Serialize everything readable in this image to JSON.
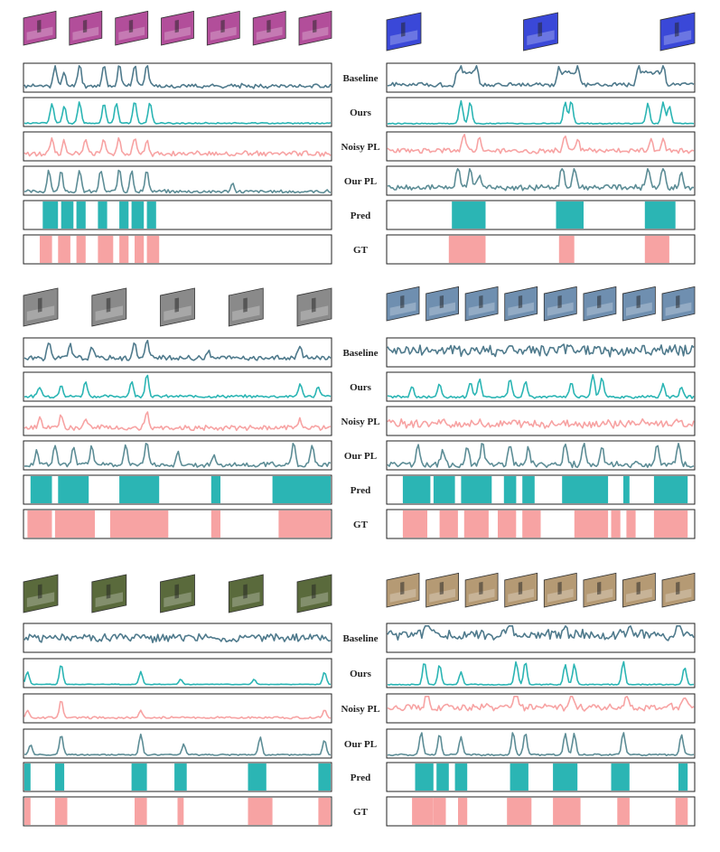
{
  "figure": {
    "row_labels": [
      "Baseline",
      "Ours",
      "Noisy PL",
      "Our PL",
      "Pred",
      "GT"
    ]
  },
  "colors": {
    "baseline": "#4f7a8c",
    "ours": "#2bb5b4",
    "noisy_pl": "#f7a3a3",
    "our_pl": "#5d8d96",
    "pred_fill": "#2bb5b4",
    "gt_fill": "#f7a3a3",
    "frame_pink": "#b24e9a",
    "frame_blue": "#3a48d8",
    "frame_gray": "#8a8a8a",
    "frame_sky": "#6f8fb0",
    "frame_field": "#5a6a3c",
    "frame_tan": "#b59a74"
  },
  "chart_data": [
    {
      "type": "line",
      "panel": "top-left",
      "thumbnail_style": "frame_pink",
      "thumbnail_count": 7,
      "pred_segments": [
        [
          0.06,
          0.11
        ],
        [
          0.12,
          0.16
        ],
        [
          0.17,
          0.2
        ],
        [
          0.24,
          0.27
        ],
        [
          0.31,
          0.34
        ],
        [
          0.35,
          0.39
        ],
        [
          0.4,
          0.43
        ]
      ],
      "gt_segments": [
        [
          0.05,
          0.09
        ],
        [
          0.11,
          0.15
        ],
        [
          0.17,
          0.2
        ],
        [
          0.24,
          0.29
        ],
        [
          0.31,
          0.34
        ],
        [
          0.36,
          0.39
        ],
        [
          0.4,
          0.44
        ]
      ],
      "series": {
        "baseline": {
          "seed": 11,
          "peaks": [
            [
              0.1,
              0.8
            ],
            [
              0.13,
              0.5
            ],
            [
              0.18,
              0.9
            ],
            [
              0.26,
              0.8
            ],
            [
              0.31,
              0.8
            ],
            [
              0.36,
              0.85
            ],
            [
              0.4,
              0.9
            ]
          ],
          "noise": 0.12,
          "base": 0.15
        },
        "ours": {
          "seed": 12,
          "peaks": [
            [
              0.09,
              0.8
            ],
            [
              0.13,
              0.7
            ],
            [
              0.18,
              0.85
            ],
            [
              0.26,
              0.8
            ],
            [
              0.3,
              0.8
            ],
            [
              0.36,
              0.9
            ],
            [
              0.41,
              0.85
            ]
          ],
          "noise": 0.04,
          "base": 0.05
        },
        "noisy_pl": {
          "seed": 13,
          "peaks": [
            [
              0.09,
              0.6
            ],
            [
              0.13,
              0.55
            ],
            [
              0.2,
              0.55
            ],
            [
              0.26,
              0.6
            ],
            [
              0.31,
              0.6
            ],
            [
              0.36,
              0.7
            ],
            [
              0.4,
              0.6
            ]
          ],
          "noise": 0.15,
          "base": 0.18
        },
        "our_pl": {
          "seed": 14,
          "peaks": [
            [
              0.08,
              0.8
            ],
            [
              0.12,
              0.8
            ],
            [
              0.18,
              0.8
            ],
            [
              0.25,
              0.85
            ],
            [
              0.31,
              0.9
            ],
            [
              0.35,
              0.85
            ],
            [
              0.4,
              0.85
            ],
            [
              0.68,
              0.3
            ]
          ],
          "noise": 0.1,
          "base": 0.05
        }
      }
    },
    {
      "type": "line",
      "panel": "top-right",
      "thumbnail_style": "frame_blue",
      "thumbnail_count": 3,
      "pred_segments": [
        [
          0.21,
          0.32
        ],
        [
          0.55,
          0.64
        ],
        [
          0.84,
          0.94
        ]
      ],
      "gt_segments": [
        [
          0.2,
          0.32
        ],
        [
          0.56,
          0.61
        ],
        [
          0.84,
          0.92
        ]
      ],
      "series": {
        "baseline": {
          "seed": 21,
          "peaks": [
            [
              0.24,
              0.85
            ],
            [
              0.29,
              0.8
            ],
            [
              0.56,
              0.75
            ],
            [
              0.62,
              0.85
            ],
            [
              0.82,
              0.75
            ],
            [
              0.9,
              0.8
            ]
          ],
          "noise": 0.12,
          "base": 0.2,
          "plateaus": [
            [
              0.22,
              0.3,
              0.7
            ],
            [
              0.56,
              0.63,
              0.7
            ],
            [
              0.82,
              0.9,
              0.7
            ]
          ]
        },
        "ours": {
          "seed": 22,
          "peaks": [
            [
              0.24,
              0.9
            ],
            [
              0.27,
              0.85
            ],
            [
              0.58,
              0.85
            ],
            [
              0.6,
              0.9
            ],
            [
              0.85,
              0.8
            ],
            [
              0.9,
              0.85
            ],
            [
              0.92,
              0.7
            ]
          ],
          "noise": 0.03,
          "base": 0.04
        },
        "noisy_pl": {
          "seed": 23,
          "peaks": [
            [
              0.25,
              0.7
            ],
            [
              0.3,
              0.5
            ],
            [
              0.58,
              0.6
            ],
            [
              0.62,
              0.5
            ],
            [
              0.86,
              0.55
            ],
            [
              0.9,
              0.45
            ]
          ],
          "noise": 0.15,
          "base": 0.3
        },
        "our_pl": {
          "seed": 24,
          "peaks": [
            [
              0.23,
              0.9
            ],
            [
              0.27,
              0.8
            ],
            [
              0.3,
              0.6
            ],
            [
              0.57,
              0.9
            ],
            [
              0.61,
              0.85
            ],
            [
              0.85,
              0.8
            ],
            [
              0.9,
              0.9
            ],
            [
              0.96,
              0.6
            ]
          ],
          "noise": 0.15,
          "base": 0.2
        }
      }
    },
    {
      "type": "line",
      "panel": "middle-left",
      "thumbnail_style": "frame_gray",
      "thumbnail_count": 5,
      "pred_segments": [
        [
          0.02,
          0.09
        ],
        [
          0.11,
          0.21
        ],
        [
          0.31,
          0.44
        ],
        [
          0.61,
          0.64
        ],
        [
          0.81,
          1.0
        ]
      ],
      "gt_segments": [
        [
          0.01,
          0.09
        ],
        [
          0.1,
          0.23
        ],
        [
          0.28,
          0.47
        ],
        [
          0.61,
          0.64
        ],
        [
          0.83,
          1.0
        ]
      ],
      "series": {
        "baseline": {
          "seed": 31,
          "peaks": [
            [
              0.08,
              0.6
            ],
            [
              0.15,
              0.5
            ],
            [
              0.22,
              0.4
            ],
            [
              0.36,
              0.6
            ],
            [
              0.4,
              0.7
            ],
            [
              0.6,
              0.3
            ],
            [
              0.9,
              0.5
            ]
          ],
          "noise": 0.15,
          "base": 0.25
        },
        "ours": {
          "seed": 32,
          "peaks": [
            [
              0.05,
              0.4
            ],
            [
              0.12,
              0.5
            ],
            [
              0.2,
              0.6
            ],
            [
              0.35,
              0.6
            ],
            [
              0.4,
              0.9
            ],
            [
              0.9,
              0.5
            ],
            [
              0.96,
              0.4
            ]
          ],
          "noise": 0.08,
          "base": 0.1
        },
        "noisy_pl": {
          "seed": 33,
          "peaks": [
            [
              0.05,
              0.4
            ],
            [
              0.12,
              0.5
            ],
            [
              0.2,
              0.45
            ],
            [
              0.4,
              0.7
            ],
            [
              0.9,
              0.3
            ]
          ],
          "noise": 0.15,
          "base": 0.2
        },
        "our_pl": {
          "seed": 34,
          "peaks": [
            [
              0.04,
              0.6
            ],
            [
              0.1,
              0.8
            ],
            [
              0.16,
              0.7
            ],
            [
              0.22,
              0.8
            ],
            [
              0.33,
              0.8
            ],
            [
              0.4,
              0.9
            ],
            [
              0.5,
              0.5
            ],
            [
              0.62,
              0.3
            ],
            [
              0.88,
              0.9
            ],
            [
              0.94,
              0.8
            ]
          ],
          "noise": 0.15,
          "base": 0.1
        }
      }
    },
    {
      "type": "line",
      "panel": "middle-right",
      "thumbnail_style": "frame_sky",
      "thumbnail_count": 8,
      "pred_segments": [
        [
          0.05,
          0.14
        ],
        [
          0.15,
          0.22
        ],
        [
          0.24,
          0.34
        ],
        [
          0.38,
          0.42
        ],
        [
          0.44,
          0.48
        ],
        [
          0.57,
          0.72
        ],
        [
          0.77,
          0.79
        ],
        [
          0.87,
          0.98
        ]
      ],
      "gt_segments": [
        [
          0.05,
          0.13
        ],
        [
          0.17,
          0.23
        ],
        [
          0.25,
          0.33
        ],
        [
          0.36,
          0.42
        ],
        [
          0.44,
          0.5
        ],
        [
          0.61,
          0.72
        ],
        [
          0.73,
          0.76
        ],
        [
          0.78,
          0.81
        ],
        [
          0.87,
          0.98
        ]
      ],
      "series": {
        "baseline": {
          "seed": 41,
          "peaks": [],
          "noise": 0.35,
          "base": 0.5
        },
        "ours": {
          "seed": 42,
          "peaks": [
            [
              0.08,
              0.4
            ],
            [
              0.17,
              0.5
            ],
            [
              0.27,
              0.6
            ],
            [
              0.3,
              0.7
            ],
            [
              0.4,
              0.7
            ],
            [
              0.45,
              0.6
            ],
            [
              0.6,
              0.6
            ],
            [
              0.67,
              0.9
            ],
            [
              0.7,
              0.8
            ],
            [
              0.9,
              0.5
            ],
            [
              0.96,
              0.4
            ]
          ],
          "noise": 0.08,
          "base": 0.08
        },
        "noisy_pl": {
          "seed": 43,
          "peaks": [],
          "noise": 0.25,
          "base": 0.35
        },
        "our_pl": {
          "seed": 44,
          "peaks": [
            [
              0.1,
              0.8
            ],
            [
              0.18,
              0.6
            ],
            [
              0.26,
              0.8
            ],
            [
              0.31,
              0.9
            ],
            [
              0.4,
              0.8
            ],
            [
              0.46,
              0.7
            ],
            [
              0.58,
              0.8
            ],
            [
              0.64,
              0.9
            ],
            [
              0.7,
              0.7
            ],
            [
              0.88,
              0.8
            ],
            [
              0.95,
              0.8
            ]
          ],
          "noise": 0.18,
          "base": 0.1
        }
      }
    },
    {
      "type": "line",
      "panel": "bottom-left",
      "thumbnail_style": "frame_field",
      "thumbnail_count": 5,
      "pred_segments": [
        [
          0.0,
          0.02
        ],
        [
          0.1,
          0.13
        ],
        [
          0.35,
          0.4
        ],
        [
          0.49,
          0.53
        ],
        [
          0.73,
          0.79
        ],
        [
          0.96,
          1.0
        ]
      ],
      "gt_segments": [
        [
          0.0,
          0.02
        ],
        [
          0.1,
          0.14
        ],
        [
          0.36,
          0.4
        ],
        [
          0.5,
          0.52
        ],
        [
          0.73,
          0.81
        ],
        [
          0.96,
          1.0
        ]
      ],
      "series": {
        "baseline": {
          "seed": 51,
          "peaks": [],
          "noise": 0.25,
          "base": 0.45
        },
        "ours": {
          "seed": 52,
          "peaks": [
            [
              0.01,
              0.5
            ],
            [
              0.12,
              0.8
            ],
            [
              0.38,
              0.5
            ],
            [
              0.51,
              0.2
            ],
            [
              0.75,
              0.2
            ],
            [
              0.98,
              0.5
            ]
          ],
          "noise": 0.02,
          "base": 0.05
        },
        "noisy_pl": {
          "seed": 53,
          "peaks": [
            [
              0.01,
              0.3
            ],
            [
              0.12,
              0.7
            ],
            [
              0.38,
              0.3
            ],
            [
              0.98,
              0.3
            ]
          ],
          "noise": 0.06,
          "base": 0.12
        },
        "our_pl": {
          "seed": 54,
          "peaks": [
            [
              0.02,
              0.4
            ],
            [
              0.12,
              0.8
            ],
            [
              0.38,
              0.8
            ],
            [
              0.52,
              0.4
            ],
            [
              0.77,
              0.7
            ],
            [
              0.98,
              0.6
            ]
          ],
          "noise": 0.04,
          "base": 0.05
        }
      }
    },
    {
      "type": "line",
      "panel": "bottom-right",
      "thumbnail_style": "frame_tan",
      "thumbnail_count": 8,
      "pred_segments": [
        [
          0.09,
          0.15
        ],
        [
          0.16,
          0.2
        ],
        [
          0.22,
          0.26
        ],
        [
          0.4,
          0.46
        ],
        [
          0.54,
          0.62
        ],
        [
          0.73,
          0.79
        ],
        [
          0.95,
          0.98
        ]
      ],
      "gt_segments": [
        [
          0.08,
          0.15
        ],
        [
          0.15,
          0.19
        ],
        [
          0.23,
          0.26
        ],
        [
          0.39,
          0.47
        ],
        [
          0.54,
          0.63
        ],
        [
          0.75,
          0.79
        ],
        [
          0.94,
          0.98
        ]
      ],
      "series": {
        "baseline": {
          "seed": 61,
          "peaks": [
            [
              0.13,
              0.9
            ],
            [
              0.4,
              0.6
            ],
            [
              0.58,
              0.5
            ],
            [
              0.79,
              0.5
            ],
            [
              0.95,
              0.9
            ]
          ],
          "noise": 0.3,
          "base": 0.55
        },
        "ours": {
          "seed": 62,
          "peaks": [
            [
              0.12,
              0.9
            ],
            [
              0.17,
              0.8
            ],
            [
              0.24,
              0.5
            ],
            [
              0.42,
              0.9
            ],
            [
              0.45,
              0.9
            ],
            [
              0.58,
              0.8
            ],
            [
              0.61,
              0.8
            ],
            [
              0.77,
              0.9
            ],
            [
              0.97,
              0.7
            ]
          ],
          "noise": 0.03,
          "base": 0.04
        },
        "noisy_pl": {
          "seed": 63,
          "peaks": [
            [
              0.13,
              0.7
            ],
            [
              0.42,
              0.8
            ],
            [
              0.6,
              0.7
            ],
            [
              0.78,
              0.6
            ],
            [
              0.97,
              0.5
            ]
          ],
          "noise": 0.2,
          "base": 0.5
        },
        "our_pl": {
          "seed": 64,
          "peaks": [
            [
              0.11,
              0.9
            ],
            [
              0.17,
              0.8
            ],
            [
              0.24,
              0.7
            ],
            [
              0.41,
              0.9
            ],
            [
              0.45,
              0.85
            ],
            [
              0.58,
              0.85
            ],
            [
              0.61,
              0.85
            ],
            [
              0.77,
              0.9
            ],
            [
              0.96,
              0.8
            ]
          ],
          "noise": 0.05,
          "base": 0.05
        }
      }
    }
  ]
}
